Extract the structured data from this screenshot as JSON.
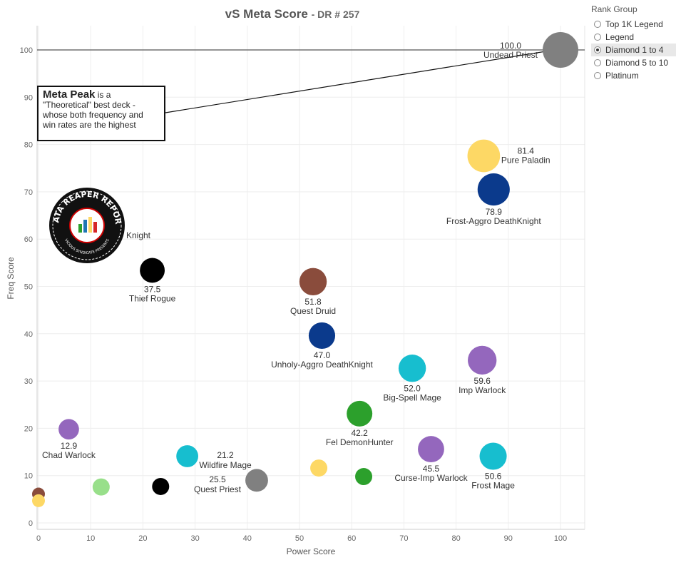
{
  "title": {
    "main": "vS Meta Score",
    "sub": "- DR # 257"
  },
  "legend": {
    "title": "Rank Group",
    "options": [
      {
        "label": "Top 1K Legend",
        "selected": false
      },
      {
        "label": "Legend",
        "selected": false
      },
      {
        "label": "Diamond 1 to 4",
        "selected": true
      },
      {
        "label": "Diamond 5 to 10",
        "selected": false
      },
      {
        "label": "Platinum",
        "selected": false
      }
    ]
  },
  "callout": {
    "bold": "Meta Peak",
    "text1": " is a",
    "text2": "\"Theoretical\" best deck -",
    "text3": "whose both frequency and",
    "text4": "win rates are the highest"
  },
  "logo": {
    "top_text": "DATA REAPER REPORT",
    "bottom_text": "VICIOUS SYNDICATE PRESENTS"
  },
  "chart_data": {
    "type": "scatter",
    "xlabel": "Power Score",
    "ylabel": "Freq Score",
    "xlim": [
      0,
      105
    ],
    "ylim": [
      -1,
      105
    ],
    "xticks": [
      0,
      10,
      20,
      30,
      40,
      50,
      60,
      70,
      80,
      90,
      100
    ],
    "yticks": [
      0,
      10,
      20,
      30,
      40,
      50,
      60,
      70,
      80,
      90,
      100
    ],
    "grid": true,
    "reference_line_y": 100,
    "points": [
      {
        "x": 100,
        "y": 100,
        "score": "100.0",
        "name": "Undead Priest",
        "color": "#808080",
        "label_pos": "left-top"
      },
      {
        "x": 85.3,
        "y": 77.6,
        "score": "81.4",
        "name": "Pure Paladin",
        "color": "#fdd865",
        "label_pos": "right"
      },
      {
        "x": 87.2,
        "y": 70.5,
        "score": "78.9",
        "name": "Frost-Aggro DeathKnight",
        "color": "#0b3a8c",
        "label_pos": "below"
      },
      {
        "x": 21.8,
        "y": 53.4,
        "score": "37.5",
        "name": "Thief Rogue",
        "color": "#000000",
        "label_pos": "below"
      },
      {
        "x": 52.6,
        "y": 51.0,
        "score": "51.8",
        "name": "Quest Druid",
        "color": "#8a4c3c",
        "label_pos": "below"
      },
      {
        "x": 54.3,
        "y": 39.6,
        "score": "47.0",
        "name": "Unholy-Aggro DeathKnight",
        "color": "#0b3a8c",
        "label_pos": "below"
      },
      {
        "x": 71.6,
        "y": 32.7,
        "score": "52.0",
        "name": "Big-Spell Mage",
        "color": "#17becf",
        "label_pos": "below"
      },
      {
        "x": 85.0,
        "y": 34.4,
        "score": "59.6",
        "name": "Imp Warlock",
        "color": "#9467bd",
        "label_pos": "below"
      },
      {
        "x": 61.5,
        "y": 23.1,
        "score": "42.2",
        "name": "Fel DemonHunter",
        "color": "#2ca02c",
        "label_pos": "below"
      },
      {
        "x": 5.8,
        "y": 19.8,
        "score": "12.9",
        "name": "Chad Warlock",
        "color": "#9467bd",
        "label_pos": "below"
      },
      {
        "x": 28.5,
        "y": 14.1,
        "score": "21.2",
        "name": "Wildfire Mage",
        "color": "#17becf",
        "label_pos": "right"
      },
      {
        "x": 41.8,
        "y": 9.0,
        "score": "25.5",
        "name": "Quest Priest",
        "color": "#808080",
        "label_pos": "left-top"
      },
      {
        "x": 75.2,
        "y": 15.6,
        "score": "45.5",
        "name": "Curse-Imp Warlock",
        "color": "#9467bd",
        "label_pos": "below"
      },
      {
        "x": 87.1,
        "y": 14.1,
        "score": "50.6",
        "name": "Frost Mage",
        "color": "#17becf",
        "label_pos": "below"
      },
      {
        "x": 53.7,
        "y": 11.6,
        "color": "#fdd865"
      },
      {
        "x": 62.3,
        "y": 9.8,
        "color": "#2ca02c"
      },
      {
        "x": 23.4,
        "y": 7.7,
        "color": "#000000"
      },
      {
        "x": 12.0,
        "y": 7.6,
        "color": "#98df8a"
      },
      {
        "x": 0.0,
        "y": 6.1,
        "color": "#8a4c3c"
      },
      {
        "x": 0.0,
        "y": 4.7,
        "color": "#fdd865"
      }
    ],
    "annotations": [
      {
        "text": "Knight",
        "x": 16.8,
        "y": 60.2
      }
    ]
  }
}
